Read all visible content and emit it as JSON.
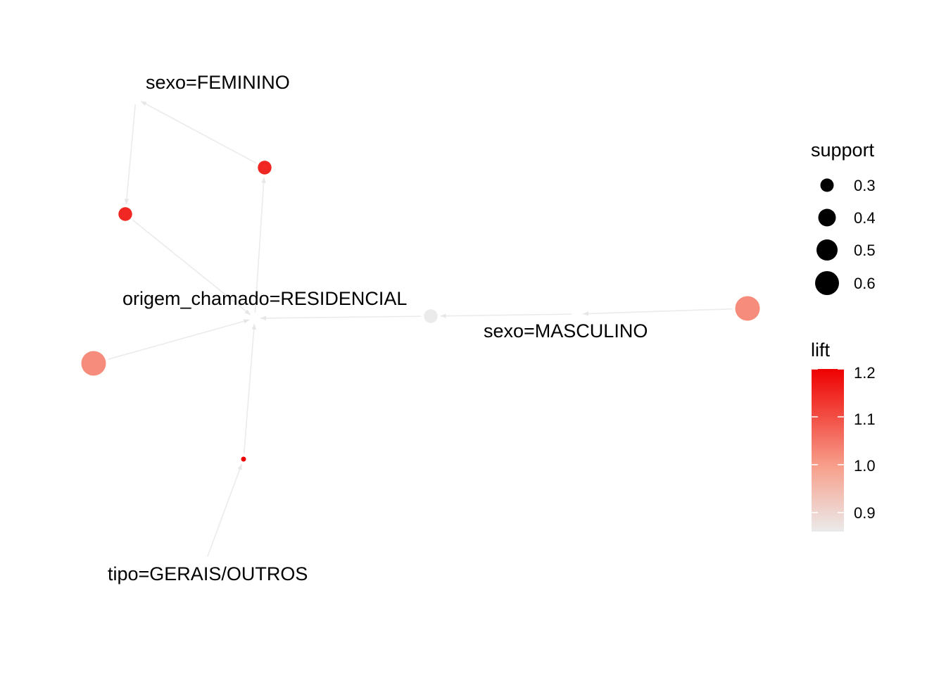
{
  "graph": {
    "type": "association-rules-graph",
    "item_nodes": [
      {
        "id": "fem",
        "label": "sexo=FEMININO"
      },
      {
        "id": "res",
        "label": "origem_chamado=RESIDENCIAL"
      },
      {
        "id": "masc",
        "label": "sexo=MASCULINO"
      },
      {
        "id": "tipo",
        "label": "tipo=GERAIS/OUTROS"
      }
    ],
    "rule_nodes": [
      {
        "id": "r1",
        "support": 0.38,
        "lift": 1.15
      },
      {
        "id": "r2",
        "support": 0.38,
        "lift": 1.15
      },
      {
        "id": "r3",
        "support": 0.38,
        "lift": 0.86
      },
      {
        "id": "r4",
        "support": 0.58,
        "lift": 1.02
      },
      {
        "id": "r5",
        "support": 0.58,
        "lift": 1.02
      },
      {
        "id": "r6",
        "support": 0.22,
        "lift": 1.2
      }
    ],
    "edges": [
      {
        "from": "r1",
        "to": "fem"
      },
      {
        "from": "res",
        "to": "r1"
      },
      {
        "from": "fem",
        "to": "r2"
      },
      {
        "from": "r2",
        "to": "res"
      },
      {
        "from": "r3",
        "to": "res"
      },
      {
        "from": "masc",
        "to": "r3"
      },
      {
        "from": "r4",
        "to": "masc"
      },
      {
        "from": "r5",
        "to": "res"
      },
      {
        "from": "tipo",
        "to": "r6"
      },
      {
        "from": "r6",
        "to": "res"
      }
    ]
  },
  "legend": {
    "size_title": "support",
    "size_items": [
      {
        "value": 0.3,
        "label": "0.3"
      },
      {
        "value": 0.4,
        "label": "0.4"
      },
      {
        "value": 0.5,
        "label": "0.5"
      },
      {
        "value": 0.6,
        "label": "0.6"
      }
    ],
    "color_title": "lift",
    "color_range": [
      0.86,
      1.2
    ],
    "color_ticks": [
      {
        "value": 1.2,
        "label": "1.2"
      },
      {
        "value": 1.1,
        "label": "1.1"
      },
      {
        "value": 1.0,
        "label": "1.0"
      },
      {
        "value": 0.9,
        "label": "0.9"
      }
    ],
    "color_low": "#ebebeb",
    "color_high": "#ee0000"
  },
  "edge_color": "#ebebeb"
}
